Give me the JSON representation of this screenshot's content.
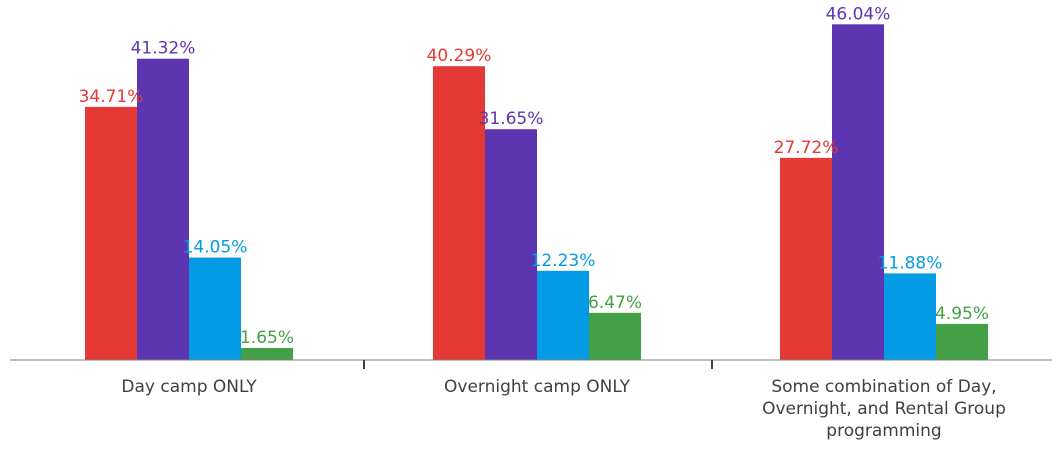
{
  "chart_data": {
    "type": "bar",
    "categories": [
      "Day camp ONLY",
      "Overnight camp ONLY",
      "Some combination of Day, Overnight, and Rental Group programming"
    ],
    "category_label_lines": [
      [
        "Day camp ONLY"
      ],
      [
        "Overnight camp ONLY"
      ],
      [
        "Some combination of Day,",
        "Overnight, and Rental Group",
        "programming"
      ]
    ],
    "series": [
      {
        "color": "#e53935",
        "values": [
          34.71,
          40.29,
          27.72
        ],
        "labels": [
          "34.71%",
          "40.29%",
          "27.72%"
        ]
      },
      {
        "color": "#5e35b1",
        "values": [
          41.32,
          31.65,
          46.04
        ],
        "labels": [
          "41.32%",
          "31.65%",
          "46.04%"
        ]
      },
      {
        "color": "#039be5",
        "values": [
          14.05,
          12.23,
          11.88
        ],
        "labels": [
          "14.05%",
          "12.23%",
          "11.88%"
        ]
      },
      {
        "color": "#43a047",
        "values": [
          1.65,
          6.47,
          4.95
        ],
        "labels": [
          "1.65%",
          "6.47%",
          "4.95%"
        ]
      }
    ],
    "ylim": [
      0,
      48
    ],
    "grid": false,
    "legend": "none",
    "axis_color": "#7f7f7f"
  }
}
